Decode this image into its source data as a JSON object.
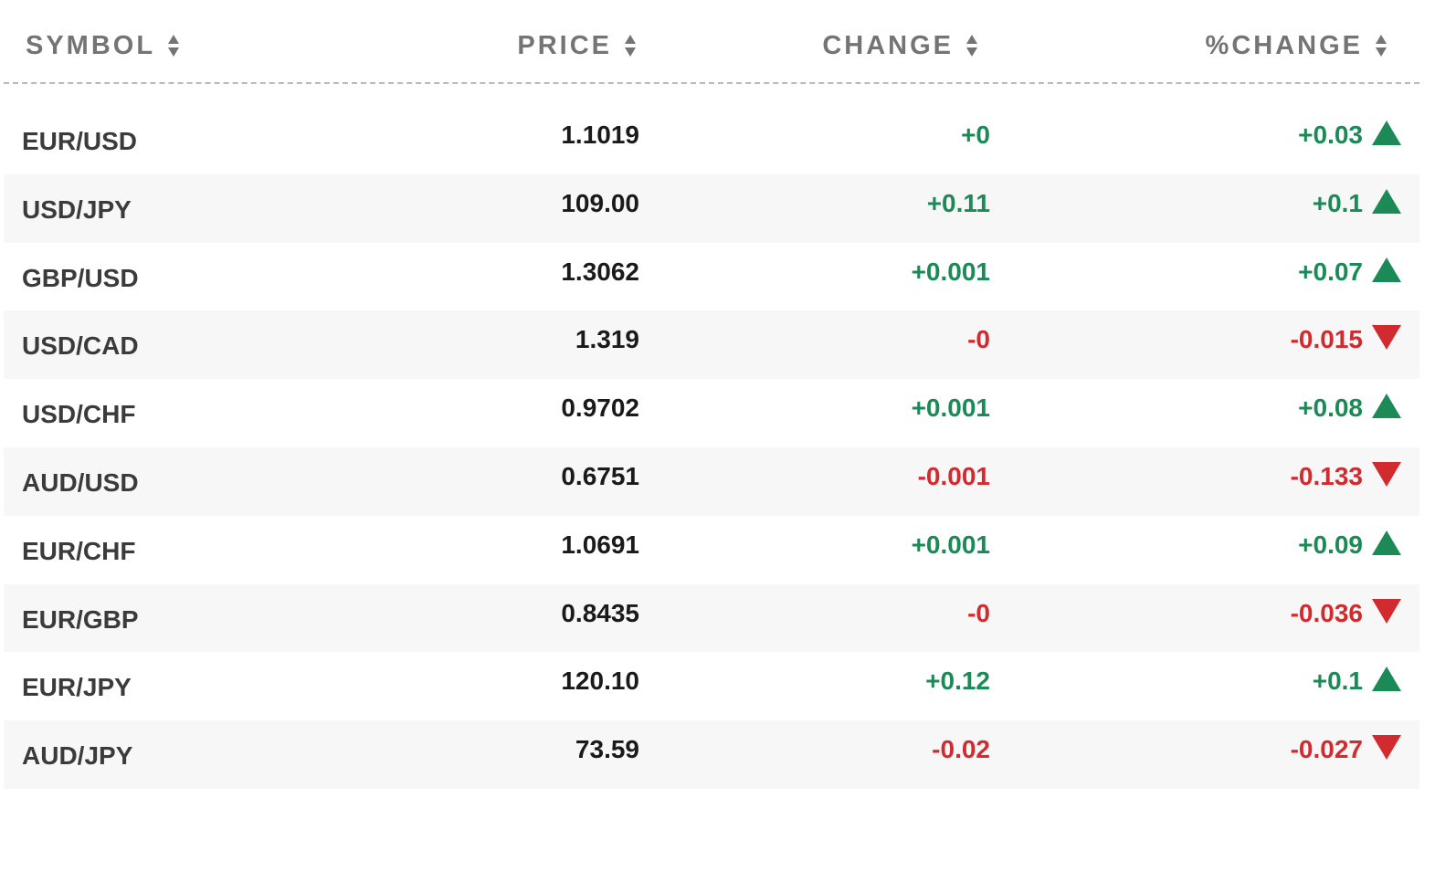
{
  "header": {
    "symbol_label": "SYMBOL",
    "price_label": "PRICE",
    "change_label": "CHANGE",
    "pct_change_label": "%CHANGE"
  },
  "colors": {
    "positive": "#1b8a56",
    "negative": "#d12b2f",
    "header_text": "#747474",
    "alt_row_bg": "#f7f7f7"
  },
  "rows": [
    {
      "symbol": "EUR/USD",
      "price": "1.1019",
      "change": "+0",
      "pct_change": "+0.03",
      "direction": "up"
    },
    {
      "symbol": "USD/JPY",
      "price": "109.00",
      "change": "+0.11",
      "pct_change": "+0.1",
      "direction": "up"
    },
    {
      "symbol": "GBP/USD",
      "price": "1.3062",
      "change": "+0.001",
      "pct_change": "+0.07",
      "direction": "up"
    },
    {
      "symbol": "USD/CAD",
      "price": "1.319",
      "change": "-0",
      "pct_change": "-0.015",
      "direction": "down"
    },
    {
      "symbol": "USD/CHF",
      "price": "0.9702",
      "change": "+0.001",
      "pct_change": "+0.08",
      "direction": "up"
    },
    {
      "symbol": "AUD/USD",
      "price": "0.6751",
      "change": "-0.001",
      "pct_change": "-0.133",
      "direction": "down"
    },
    {
      "symbol": "EUR/CHF",
      "price": "1.0691",
      "change": "+0.001",
      "pct_change": "+0.09",
      "direction": "up"
    },
    {
      "symbol": "EUR/GBP",
      "price": "0.8435",
      "change": "-0",
      "pct_change": "-0.036",
      "direction": "down"
    },
    {
      "symbol": "EUR/JPY",
      "price": "120.10",
      "change": "+0.12",
      "pct_change": "+0.1",
      "direction": "up"
    },
    {
      "symbol": "AUD/JPY",
      "price": "73.59",
      "change": "-0.02",
      "pct_change": "-0.027",
      "direction": "down"
    }
  ]
}
